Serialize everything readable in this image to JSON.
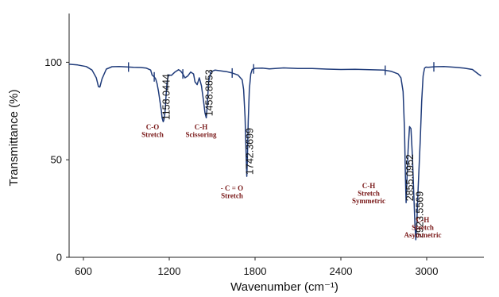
{
  "chart_data": {
    "type": "line",
    "title": "",
    "xlabel": "Wavenumber (cm⁻¹)",
    "ylabel": "Transmittance (%)",
    "xlim": [
      500,
      3400
    ],
    "ylim": [
      0,
      125
    ],
    "x_ticks": [
      600,
      1200,
      1800,
      2400,
      3000
    ],
    "y_ticks": [
      0,
      50,
      100
    ],
    "grid": false,
    "line_color": "#1f3b7a",
    "annotation_color": "#7a1a1a",
    "series": [
      {
        "x": [
          500,
          560,
          620,
          660,
          690,
          705,
          715,
          730,
          760,
          800,
          850,
          900,
          950,
          1000,
          1040,
          1070,
          1080,
          1095,
          1105,
          1115,
          1125,
          1135,
          1145,
          1150,
          1158,
          1163,
          1170,
          1178,
          1185,
          1195,
          1215,
          1240,
          1265,
          1280,
          1295,
          1310,
          1330,
          1350,
          1370,
          1380,
          1395,
          1410,
          1425,
          1440,
          1450,
          1459,
          1466,
          1475,
          1490,
          1520,
          1560,
          1600,
          1640,
          1680,
          1710,
          1720,
          1730,
          1738,
          1742,
          1746,
          1752,
          1760,
          1770,
          1780,
          1800,
          1850,
          1900,
          2000,
          2100,
          2200,
          2300,
          2400,
          2500,
          2600,
          2700,
          2750,
          2800,
          2820,
          2835,
          2845,
          2851,
          2856,
          2862,
          2870,
          2880,
          2890,
          2900,
          2910,
          2918,
          2924,
          2930,
          2940,
          2955,
          2965,
          2975,
          2985,
          2995,
          3010,
          3060,
          3120,
          3200,
          3260,
          3320,
          3360,
          3380
        ],
        "y": [
          99,
          98.6,
          97.8,
          96,
          92,
          87.5,
          87.3,
          91.5,
          96.5,
          97.7,
          97.8,
          97.6,
          97.4,
          97.3,
          97,
          96,
          93.5,
          92.5,
          91.5,
          89,
          85,
          80,
          75,
          71.5,
          69.5,
          70.5,
          74,
          83,
          90,
          93.5,
          93.3,
          95,
          96.2,
          95.5,
          94,
          92,
          93,
          95,
          94,
          90,
          88.5,
          92,
          88,
          80,
          74,
          71.5,
          78,
          90,
          95,
          96,
          95.6,
          95.2,
          94.5,
          93.5,
          91,
          86,
          72,
          52,
          41.5,
          50,
          70,
          86,
          94,
          96.3,
          96.9,
          97,
          96.6,
          97.1,
          96.8,
          96.8,
          96.5,
          96.3,
          96.4,
          96.2,
          96,
          95.4,
          94,
          92,
          85,
          65,
          42,
          28,
          40,
          55,
          67,
          66,
          52,
          32,
          17,
          9,
          16,
          35,
          60,
          80,
          93,
          97,
          97.5,
          97.4,
          97.7,
          97.8,
          97.4,
          97,
          96.3,
          94,
          93
        ],
        "vertical_markers": [
          915,
          1095,
          1295,
          1640,
          1790,
          2710,
          3050
        ]
      }
    ],
    "peak_labels": [
      "1158.0444",
      "1458.8853",
      "1742.3699",
      "2855.0952",
      "2923.5569"
    ],
    "annotations": [
      {
        "lines": [
          "C-O",
          "Stretch"
        ]
      },
      {
        "lines": [
          "C-H",
          "Scissoring"
        ]
      },
      {
        "lines": [
          "- C = O",
          "Stretch"
        ]
      },
      {
        "lines": [
          "C-H",
          "Stretch",
          "Symmetric"
        ]
      },
      {
        "lines": [
          "C-H",
          "Stretch",
          "Asymmetric"
        ]
      }
    ]
  }
}
